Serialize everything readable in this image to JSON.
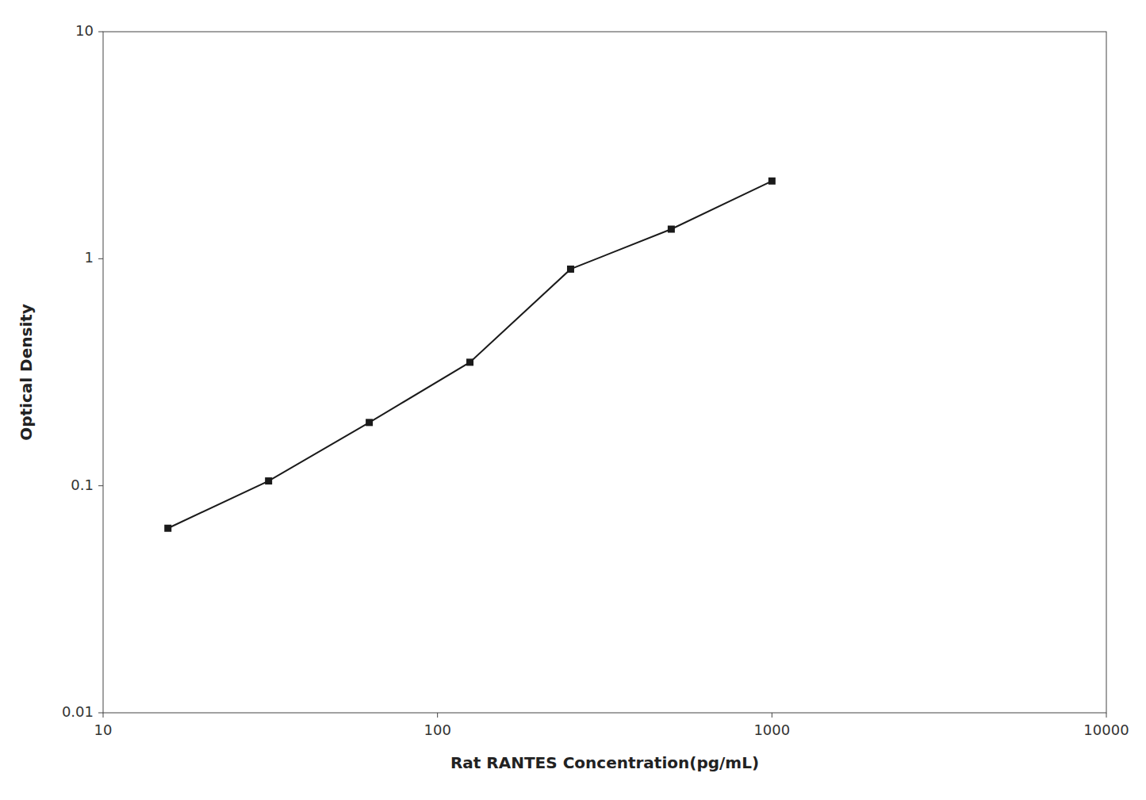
{
  "chart_data": {
    "type": "line",
    "xlabel": "Rat RANTES Concentration(pg/mL)",
    "ylabel": "Optical Density",
    "x": [
      15.625,
      31.25,
      62.5,
      125,
      250,
      500,
      1000
    ],
    "values": [
      0.065,
      0.105,
      0.19,
      0.35,
      0.9,
      1.35,
      2.2
    ],
    "color": "#1a1a1a",
    "marker": "square",
    "log": true,
    "xlim": [
      10,
      10000
    ],
    "ylim": [
      0.01,
      10
    ],
    "xticks": [
      10,
      100,
      1000,
      10000
    ],
    "yticks": [
      0.01,
      0.1,
      1,
      10
    ],
    "grid": false
  }
}
